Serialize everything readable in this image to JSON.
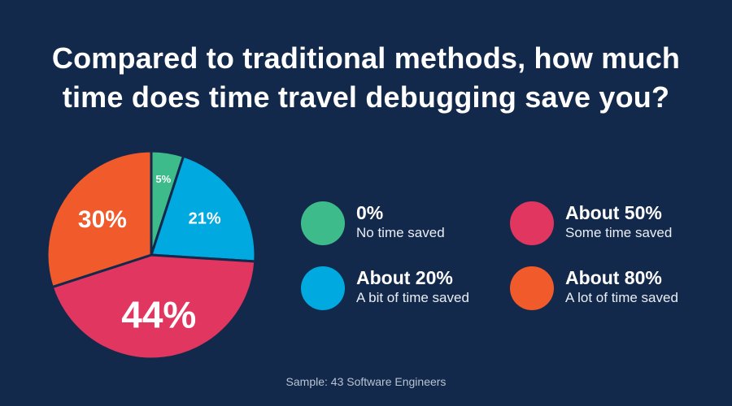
{
  "title_line1": "Compared to traditional methods, how much",
  "title_line2": "time does time travel debugging save you?",
  "chart_data": {
    "type": "pie",
    "title": "Compared to traditional methods, how much time does time travel debugging save you?",
    "categories": [
      "0%",
      "About 20%",
      "About 50%",
      "About 80%"
    ],
    "values": [
      5,
      21,
      44,
      30
    ],
    "value_labels": [
      "5%",
      "21%",
      "44%",
      "30%"
    ],
    "descriptions": [
      "No time saved",
      "A bit of time saved",
      "Some time saved",
      "A lot of time saved"
    ],
    "colors": [
      "#3dbb8b",
      "#00a9e0",
      "#e0365f",
      "#f15a2b"
    ],
    "legend_position": "right"
  },
  "legend": [
    {
      "title": "0%",
      "sub": "No time saved",
      "color": "#3dbb8b"
    },
    {
      "title": "About 20%",
      "sub": "A bit of time saved",
      "color": "#00a9e0"
    },
    {
      "title": "About 50%",
      "sub": "Some time saved",
      "color": "#e0365f"
    },
    {
      "title": "About 80%",
      "sub": "A lot of time saved",
      "color": "#f15a2b"
    }
  ],
  "footnote": "Sample: 43 Software Engineers"
}
